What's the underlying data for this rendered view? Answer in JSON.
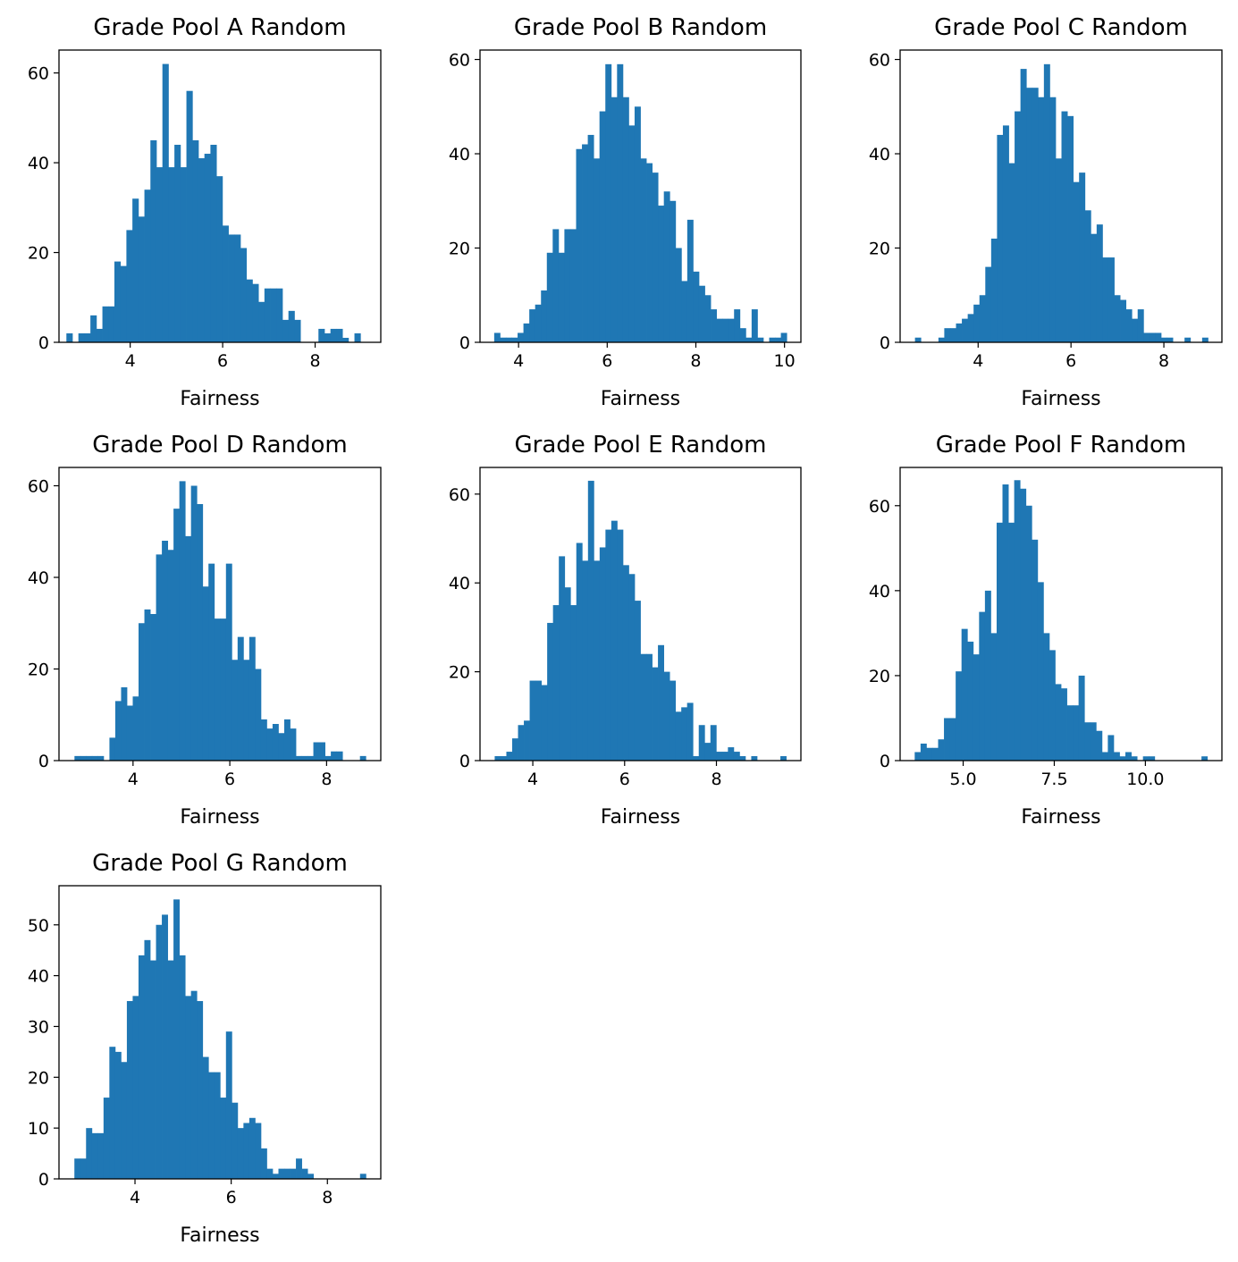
{
  "figure": {
    "background": "#ffffff",
    "bar_color": "#1f77b4"
  },
  "chart_data": [
    {
      "type": "bar",
      "title": "Grade Pool A Random",
      "xlabel": "Fairness",
      "ylabel": "",
      "bins": 50,
      "xlim": [
        2.46,
        9.42
      ],
      "ylim": [
        0,
        65.1
      ],
      "xticks": [
        4,
        6,
        8
      ],
      "xtick_labels": [
        "4",
        "6",
        "8"
      ],
      "yticks": [
        0,
        20,
        40,
        60
      ],
      "ytick_labels": [
        "0",
        "20",
        "40",
        "60"
      ],
      "bin_edges": [
        2.62,
        9.11
      ],
      "counts": [
        2,
        0,
        2,
        2,
        6,
        3,
        8,
        8,
        18,
        17,
        25,
        32,
        28,
        34,
        45,
        39,
        62,
        39,
        44,
        39,
        56,
        45,
        41,
        42,
        44,
        37,
        26,
        24,
        24,
        21,
        14,
        13,
        9,
        12,
        12,
        12,
        5,
        7,
        5,
        0,
        0,
        0,
        3,
        2,
        3,
        3,
        1,
        0,
        2,
        0
      ]
    },
    {
      "type": "bar",
      "title": "Grade Pool B Random",
      "xlabel": "Fairness",
      "ylabel": "",
      "bins": 50,
      "xlim": [
        3.13,
        10.37
      ],
      "ylim": [
        0,
        62
      ],
      "xticks": [
        4,
        6,
        8,
        10
      ],
      "xtick_labels": [
        "4",
        "6",
        "8",
        "10"
      ],
      "yticks": [
        0,
        20,
        40,
        60
      ],
      "ytick_labels": [
        "0",
        "20",
        "40",
        "60"
      ],
      "bin_edges": [
        3.45,
        10.05
      ],
      "counts": [
        2,
        1,
        1,
        1,
        2,
        4,
        7,
        8,
        11,
        19,
        24,
        19,
        24,
        24,
        41,
        42,
        44,
        39,
        49,
        59,
        52,
        59,
        52,
        46,
        50,
        39,
        38,
        36,
        29,
        32,
        30,
        20,
        13,
        26,
        15,
        12,
        10,
        7,
        5,
        5,
        5,
        7,
        3,
        1,
        7,
        1,
        0,
        1,
        1,
        2
      ]
    },
    {
      "type": "bar",
      "title": "Grade Pool C Random",
      "xlabel": "Fairness",
      "ylabel": "",
      "bins": 50,
      "xlim": [
        2.32,
        9.25
      ],
      "ylim": [
        0,
        62
      ],
      "xticks": [
        4,
        6,
        8
      ],
      "xtick_labels": [
        "4",
        "6",
        "8"
      ],
      "yticks": [
        0,
        20,
        40,
        60
      ],
      "ytick_labels": [
        "0",
        "20",
        "40",
        "60"
      ],
      "bin_edges": [
        2.64,
        8.95
      ],
      "counts": [
        1,
        0,
        0,
        0,
        1,
        3,
        3,
        4,
        5,
        6,
        8,
        10,
        16,
        22,
        44,
        46,
        38,
        49,
        58,
        54,
        54,
        52,
        59,
        52,
        39,
        49,
        48,
        34,
        36,
        28,
        23,
        25,
        18,
        18,
        10,
        9,
        7,
        5,
        7,
        2,
        2,
        2,
        1,
        1,
        0,
        0,
        1,
        0,
        0,
        1
      ]
    },
    {
      "type": "bar",
      "title": "Grade Pool D Random",
      "xlabel": "Fairness",
      "ylabel": "",
      "bins": 50,
      "xlim": [
        2.47,
        9.12
      ],
      "ylim": [
        0,
        64
      ],
      "xticks": [
        4,
        6,
        8
      ],
      "xtick_labels": [
        "4",
        "6",
        "8"
      ],
      "yticks": [
        0,
        20,
        40,
        60
      ],
      "ytick_labels": [
        "0",
        "20",
        "40",
        "60"
      ],
      "bin_edges": [
        2.79,
        8.81
      ],
      "counts": [
        1,
        1,
        1,
        1,
        1,
        0,
        5,
        13,
        16,
        12,
        14,
        30,
        33,
        32,
        45,
        48,
        46,
        55,
        61,
        49,
        60,
        56,
        38,
        43,
        31,
        31,
        43,
        22,
        27,
        22,
        27,
        20,
        9,
        7,
        8,
        6,
        9,
        7,
        1,
        1,
        1,
        4,
        4,
        1,
        2,
        2,
        0,
        0,
        0,
        1
      ]
    },
    {
      "type": "bar",
      "title": "Grade Pool E Random",
      "xlabel": "Fairness",
      "ylabel": "",
      "bins": 50,
      "xlim": [
        2.85,
        9.84
      ],
      "ylim": [
        0,
        66
      ],
      "xticks": [
        4,
        6,
        8
      ],
      "xtick_labels": [
        "4",
        "6",
        "8"
      ],
      "yticks": [
        0,
        20,
        40,
        60
      ],
      "ytick_labels": [
        "0",
        "20",
        "40",
        "60"
      ],
      "bin_edges": [
        3.17,
        9.52
      ],
      "counts": [
        1,
        1,
        2,
        5,
        8,
        9,
        18,
        18,
        17,
        31,
        35,
        46,
        39,
        35,
        49,
        45,
        63,
        45,
        48,
        52,
        54,
        52,
        44,
        42,
        36,
        24,
        24,
        21,
        26,
        20,
        18,
        11,
        12,
        13,
        1,
        8,
        4,
        8,
        2,
        2,
        3,
        2,
        1,
        0,
        1,
        0,
        0,
        0,
        0,
        1
      ]
    },
    {
      "type": "bar",
      "title": "Grade Pool F Random",
      "xlabel": "Fairness",
      "ylabel": "",
      "bins": 50,
      "xlim": [
        3.27,
        12.1
      ],
      "ylim": [
        0,
        69
      ],
      "xticks": [
        5.0,
        7.5,
        10.0
      ],
      "xtick_labels": [
        "5.0",
        "7.5",
        "10.0"
      ],
      "yticks": [
        0,
        20,
        40,
        60
      ],
      "ytick_labels": [
        "0",
        "20",
        "40",
        "60"
      ],
      "bin_edges": [
        3.67,
        11.7
      ],
      "counts": [
        2,
        4,
        3,
        3,
        5,
        10,
        10,
        21,
        31,
        28,
        25,
        35,
        40,
        30,
        56,
        65,
        56,
        66,
        64,
        60,
        52,
        42,
        30,
        26,
        18,
        17,
        13,
        13,
        20,
        9,
        9,
        7,
        2,
        6,
        2,
        1,
        2,
        1,
        0,
        1,
        1,
        0,
        0,
        0,
        0,
        0,
        0,
        0,
        0,
        1
      ]
    },
    {
      "type": "bar",
      "title": "Grade Pool G Random",
      "xlabel": "Fairness",
      "ylabel": "",
      "bins": 50,
      "xlim": [
        2.42,
        9.11
      ],
      "ylim": [
        0,
        57.7
      ],
      "xticks": [
        4,
        6,
        8
      ],
      "xtick_labels": [
        "4",
        "6",
        "8"
      ],
      "yticks": [
        0,
        10,
        20,
        30,
        40,
        50
      ],
      "ytick_labels": [
        "0",
        "10",
        "20",
        "30",
        "40",
        "50"
      ],
      "bin_edges": [
        2.74,
        8.8
      ],
      "counts": [
        4,
        4,
        10,
        9,
        9,
        16,
        26,
        25,
        23,
        35,
        36,
        44,
        47,
        43,
        50,
        52,
        43,
        55,
        44,
        36,
        37,
        35,
        24,
        21,
        21,
        16,
        29,
        15,
        10,
        11,
        12,
        11,
        6,
        2,
        1,
        2,
        2,
        2,
        4,
        2,
        1,
        0,
        0,
        0,
        0,
        0,
        0,
        0,
        0,
        1
      ]
    }
  ]
}
